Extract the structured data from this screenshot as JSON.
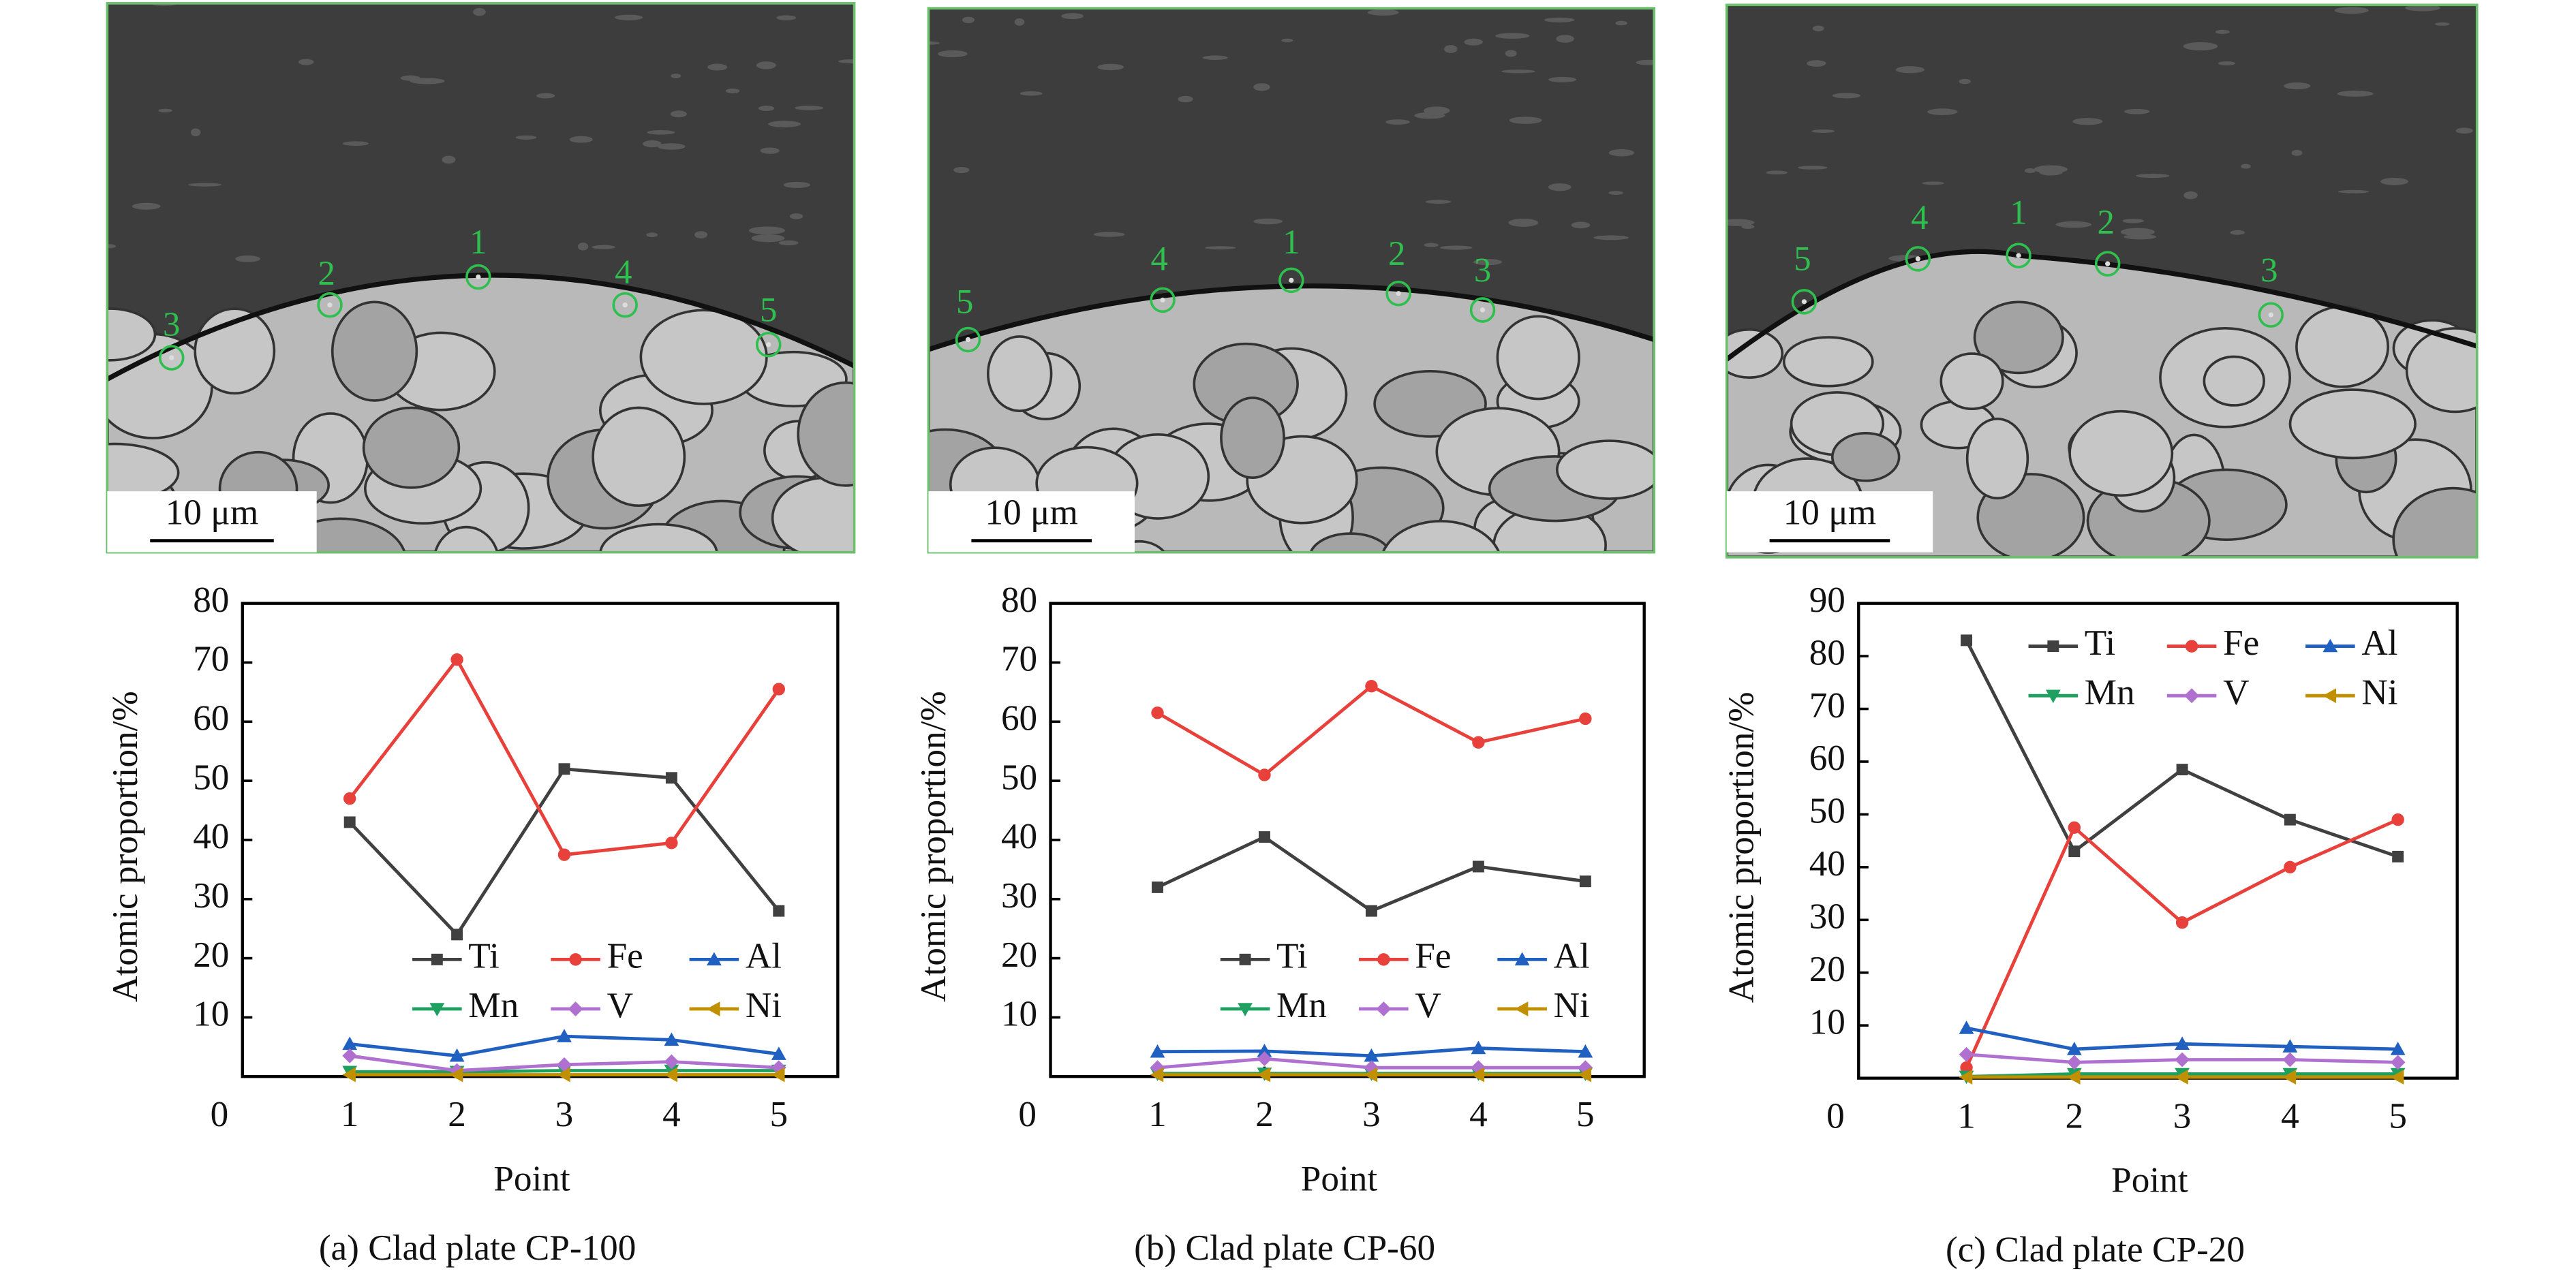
{
  "micrographs": [
    {
      "scale_bar": "10 μm",
      "points": [
        "1",
        "2",
        "3",
        "4",
        "5"
      ]
    },
    {
      "scale_bar": "10 μm",
      "points": [
        "1",
        "2",
        "3",
        "4",
        "5"
      ]
    },
    {
      "scale_bar": "10 μm",
      "points": [
        "1",
        "2",
        "3",
        "4",
        "5"
      ]
    }
  ],
  "chart_data": [
    {
      "type": "line",
      "title": "(a) Clad plate CP-100",
      "x_label": "Point",
      "y_label": "Atomic proportion/%",
      "x": [
        1,
        2,
        3,
        4,
        5
      ],
      "xlim": [
        0,
        5.55
      ],
      "xticks": [
        0,
        1,
        2,
        3,
        4,
        5
      ],
      "ylim": [
        0,
        80
      ],
      "yticks": [
        10,
        20,
        30,
        40,
        50,
        60,
        70,
        80
      ],
      "legend": "lower center",
      "series": [
        {
          "name": "Ti",
          "color": "#404040",
          "marker": "square",
          "values": [
            43,
            24,
            52,
            50.5,
            28
          ]
        },
        {
          "name": "Fe",
          "color": "#e8403a",
          "marker": "circle",
          "values": [
            47,
            70.5,
            37.5,
            39.5,
            65.5
          ]
        },
        {
          "name": "Al",
          "color": "#2060c0",
          "marker": "triangle-up",
          "values": [
            5.5,
            3.5,
            6.8,
            6.2,
            3.8
          ]
        },
        {
          "name": "Mn",
          "color": "#20a060",
          "marker": "triangle-down",
          "values": [
            0.8,
            0.8,
            1,
            1,
            1
          ]
        },
        {
          "name": "V",
          "color": "#b070d0",
          "marker": "diamond",
          "values": [
            3.5,
            1,
            2,
            2.5,
            1.5
          ]
        },
        {
          "name": "Ni",
          "color": "#c09000",
          "marker": "triangle-left",
          "values": [
            0.3,
            0.3,
            0.3,
            0.3,
            0.3
          ]
        }
      ]
    },
    {
      "type": "line",
      "title": "(b) Clad plate CP-60",
      "x_label": "Point",
      "y_label": "Atomic proportion/%",
      "x": [
        1,
        2,
        3,
        4,
        5
      ],
      "xlim": [
        0,
        5.55
      ],
      "xticks": [
        0,
        1,
        2,
        3,
        4,
        5
      ],
      "ylim": [
        0,
        80
      ],
      "yticks": [
        10,
        20,
        30,
        40,
        50,
        60,
        70,
        80
      ],
      "legend": "lower center",
      "series": [
        {
          "name": "Ti",
          "color": "#404040",
          "marker": "square",
          "values": [
            32,
            40.5,
            28,
            35.5,
            33
          ]
        },
        {
          "name": "Fe",
          "color": "#e8403a",
          "marker": "circle",
          "values": [
            61.5,
            51,
            66,
            56.5,
            60.5
          ]
        },
        {
          "name": "Al",
          "color": "#2060c0",
          "marker": "triangle-up",
          "values": [
            4.2,
            4.3,
            3.5,
            4.8,
            4.2
          ]
        },
        {
          "name": "Mn",
          "color": "#20a060",
          "marker": "triangle-down",
          "values": [
            0.5,
            0.5,
            0.5,
            0.5,
            0.5
          ]
        },
        {
          "name": "V",
          "color": "#b070d0",
          "marker": "diamond",
          "values": [
            1.5,
            3,
            1.5,
            1.5,
            1.5
          ]
        },
        {
          "name": "Ni",
          "color": "#c09000",
          "marker": "triangle-left",
          "values": [
            0.3,
            0.3,
            0.3,
            0.3,
            0.3
          ]
        }
      ]
    },
    {
      "type": "line",
      "title": "(c) Clad plate CP-20",
      "x_label": "Point",
      "y_label": "Atomic proportion/%",
      "x": [
        1,
        2,
        3,
        4,
        5
      ],
      "xlim": [
        0,
        5.55
      ],
      "xticks": [
        0,
        1,
        2,
        3,
        4,
        5
      ],
      "ylim": [
        0,
        90
      ],
      "yticks": [
        10,
        20,
        30,
        40,
        50,
        60,
        70,
        80,
        90
      ],
      "legend": "upper center",
      "series": [
        {
          "name": "Ti",
          "color": "#404040",
          "marker": "square",
          "values": [
            83,
            43,
            58.5,
            49,
            42
          ]
        },
        {
          "name": "Fe",
          "color": "#e8403a",
          "marker": "circle",
          "values": [
            2,
            47.5,
            29.5,
            40,
            49
          ]
        },
        {
          "name": "Al",
          "color": "#2060c0",
          "marker": "triangle-up",
          "values": [
            9.5,
            5.5,
            6.5,
            6,
            5.5
          ]
        },
        {
          "name": "Mn",
          "color": "#20a060",
          "marker": "triangle-down",
          "values": [
            0.3,
            0.8,
            0.8,
            0.8,
            0.8
          ]
        },
        {
          "name": "V",
          "color": "#b070d0",
          "marker": "diamond",
          "values": [
            4.5,
            3,
            3.5,
            3.5,
            3
          ]
        },
        {
          "name": "Ni",
          "color": "#c09000",
          "marker": "triangle-left",
          "values": [
            0.2,
            0.2,
            0.2,
            0.2,
            0.2
          ]
        }
      ]
    }
  ]
}
